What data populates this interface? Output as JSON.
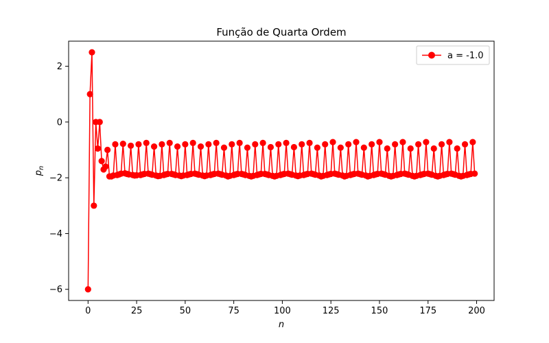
{
  "chart_data": {
    "type": "line",
    "title": "Função de Quarta Ordem",
    "xlabel": "n",
    "ylabel": {
      "base": "p",
      "subscript": "n"
    },
    "xlim": [
      -10,
      209
    ],
    "ylim": [
      -6.4,
      2.9
    ],
    "xticks": [
      0,
      25,
      50,
      75,
      100,
      125,
      150,
      175,
      200
    ],
    "xtick_labels": [
      "0",
      "25",
      "50",
      "75",
      "100",
      "125",
      "150",
      "175",
      "200"
    ],
    "yticks": [
      -6,
      -4,
      -2,
      0,
      2
    ],
    "ytick_labels": [
      "−6",
      "−4",
      "−2",
      "0",
      "2"
    ],
    "grid": false,
    "legend": {
      "position": "top-right"
    },
    "series": [
      {
        "name": "a = -1.0",
        "color": "#ff0000",
        "marker": "circle",
        "x": [
          0,
          1,
          2,
          3,
          4,
          5,
          6,
          7,
          8,
          9,
          10,
          11,
          12,
          13,
          14,
          15,
          16,
          17,
          18,
          19,
          20,
          21,
          22,
          23,
          24,
          25,
          26,
          27,
          28,
          29,
          30,
          31,
          32,
          33,
          34,
          35,
          36,
          37,
          38,
          39,
          40,
          41,
          42,
          43,
          44,
          45,
          46,
          47,
          48,
          49,
          50,
          51,
          52,
          53,
          54,
          55,
          56,
          57,
          58,
          59,
          60,
          61,
          62,
          63,
          64,
          65,
          66,
          67,
          68,
          69,
          70,
          71,
          72,
          73,
          74,
          75,
          76,
          77,
          78,
          79,
          80,
          81,
          82,
          83,
          84,
          85,
          86,
          87,
          88,
          89,
          90,
          91,
          92,
          93,
          94,
          95,
          96,
          97,
          98,
          99,
          100,
          101,
          102,
          103,
          104,
          105,
          106,
          107,
          108,
          109,
          110,
          111,
          112,
          113,
          114,
          115,
          116,
          117,
          118,
          119,
          120,
          121,
          122,
          123,
          124,
          125,
          126,
          127,
          128,
          129,
          130,
          131,
          132,
          133,
          134,
          135,
          136,
          137,
          138,
          139,
          140,
          141,
          142,
          143,
          144,
          145,
          146,
          147,
          148,
          149,
          150,
          151,
          152,
          153,
          154,
          155,
          156,
          157,
          158,
          159,
          160,
          161,
          162,
          163,
          164,
          165,
          166,
          167,
          168,
          169,
          170,
          171,
          172,
          173,
          174,
          175,
          176,
          177,
          178,
          179,
          180,
          181,
          182,
          183,
          184,
          185,
          186,
          187,
          188,
          189,
          190,
          191,
          192,
          193,
          194,
          195,
          196,
          197,
          198,
          199
        ],
        "y": [
          -6.0,
          1.0,
          2.5,
          -3.0,
          0.0,
          -0.95,
          0.0,
          -1.4,
          -1.7,
          -1.6,
          -1.0,
          -1.95,
          -1.95,
          -1.92,
          -0.8,
          -1.9,
          -1.88,
          -1.85,
          -0.78,
          -1.84,
          -1.86,
          -1.88,
          -0.85,
          -1.9,
          -1.92,
          -1.91,
          -0.8,
          -1.9,
          -1.88,
          -1.86,
          -0.75,
          -1.85,
          -1.87,
          -1.89,
          -0.88,
          -1.92,
          -1.94,
          -1.93,
          -0.8,
          -1.9,
          -1.88,
          -1.86,
          -0.75,
          -1.86,
          -1.88,
          -1.9,
          -0.88,
          -1.92,
          -1.94,
          -1.92,
          -0.8,
          -1.9,
          -1.88,
          -1.86,
          -0.75,
          -1.85,
          -1.87,
          -1.89,
          -0.88,
          -1.92,
          -1.94,
          -1.92,
          -0.8,
          -1.9,
          -1.88,
          -1.86,
          -0.75,
          -1.85,
          -1.87,
          -1.89,
          -0.92,
          -1.92,
          -1.95,
          -1.93,
          -0.8,
          -1.9,
          -1.88,
          -1.86,
          -0.75,
          -1.86,
          -1.88,
          -1.9,
          -0.92,
          -1.93,
          -1.95,
          -1.93,
          -0.8,
          -1.9,
          -1.88,
          -1.86,
          -0.75,
          -1.86,
          -1.88,
          -1.9,
          -0.9,
          -1.93,
          -1.95,
          -1.93,
          -0.8,
          -1.9,
          -1.88,
          -1.86,
          -0.75,
          -1.85,
          -1.87,
          -1.89,
          -0.9,
          -1.92,
          -1.94,
          -1.92,
          -0.8,
          -1.9,
          -1.88,
          -1.86,
          -0.75,
          -1.85,
          -1.87,
          -1.89,
          -0.92,
          -1.92,
          -1.95,
          -1.93,
          -0.8,
          -1.9,
          -1.88,
          -1.86,
          -0.72,
          -1.85,
          -1.87,
          -1.89,
          -0.92,
          -1.92,
          -1.95,
          -1.93,
          -0.8,
          -1.9,
          -1.88,
          -1.86,
          -0.72,
          -1.85,
          -1.87,
          -1.89,
          -0.92,
          -1.92,
          -1.95,
          -1.93,
          -0.8,
          -1.9,
          -1.88,
          -1.86,
          -0.72,
          -1.85,
          -1.87,
          -1.89,
          -0.95,
          -1.93,
          -1.95,
          -1.93,
          -0.8,
          -1.9,
          -1.88,
          -1.86,
          -0.72,
          -1.85,
          -1.87,
          -1.89,
          -0.95,
          -1.93,
          -1.95,
          -1.93,
          -0.8,
          -1.9,
          -1.88,
          -1.86,
          -0.72,
          -1.85,
          -1.87,
          -1.89,
          -0.95,
          -1.93,
          -1.95,
          -1.93,
          -0.8,
          -1.9,
          -1.88,
          -1.86,
          -0.72,
          -1.85,
          -1.87,
          -1.89,
          -0.95,
          -1.93,
          -1.95,
          -1.93,
          -0.8,
          -1.9,
          -1.88,
          -1.86,
          -0.72,
          -1.85
        ]
      }
    ]
  }
}
